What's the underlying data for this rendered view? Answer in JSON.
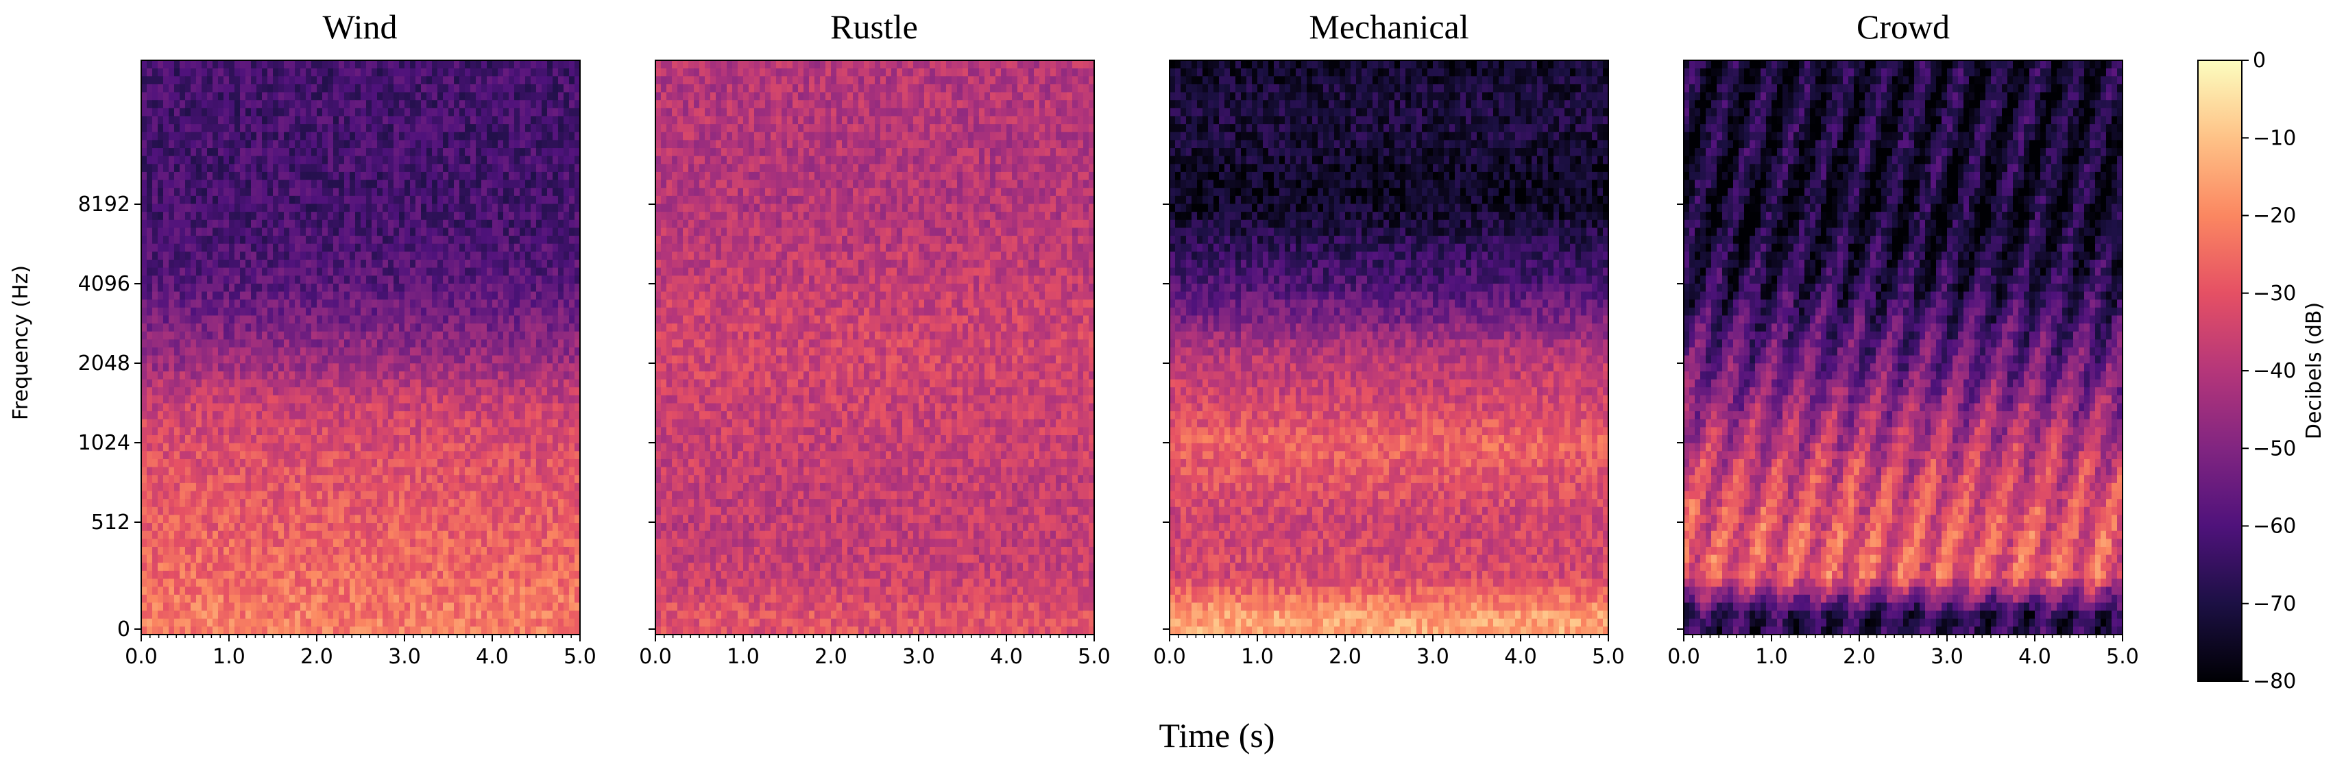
{
  "figure": {
    "shared_xlabel": "Time (s)",
    "shared_ylabel": "Frequency (Hz)"
  },
  "colorbar": {
    "label": "Decibels (dB)",
    "range": [
      -80,
      0
    ],
    "ticks": [
      0,
      -10,
      -20,
      -30,
      -40,
      -50,
      -60,
      -70,
      -80
    ],
    "tick_labels": [
      "0",
      "−10",
      "−20",
      "−30",
      "−40",
      "−50",
      "−60",
      "−70",
      "−80"
    ],
    "colormap": "magma",
    "colormap_stops": [
      "#000004",
      "#1c1044",
      "#4f127b",
      "#812581",
      "#b5367a",
      "#e55064",
      "#fb8761",
      "#fec287",
      "#fcfdbf"
    ]
  },
  "chart_data": [
    {
      "type": "heatmap",
      "title": "Wind",
      "xlabel": "Time (s)",
      "ylabel": "Frequency (Hz)",
      "xlim": [
        0,
        5
      ],
      "x_ticks": [
        0,
        1,
        2,
        3,
        4,
        5
      ],
      "x_tick_labels": [
        "0.0",
        "1.0",
        "2.0",
        "3.0",
        "4.0",
        "5.0"
      ],
      "y_scale": "log2",
      "y_ticks": [
        0,
        512,
        1024,
        2048,
        4096,
        8192
      ],
      "y_tick_labels": [
        "0",
        "512",
        "1024",
        "2048",
        "4096",
        "8192"
      ],
      "value_range_db": [
        -80,
        0
      ],
      "freq_profile_hz": [
        64,
        256,
        512,
        1024,
        1536,
        2048,
        3072,
        4096,
        6144,
        8192,
        11025
      ],
      "freq_profile_db": [
        -22,
        -25,
        -28,
        -32,
        -37,
        -45,
        -53,
        -58,
        -61,
        -62,
        -62
      ]
    },
    {
      "type": "heatmap",
      "title": "Rustle",
      "xlabel": "Time (s)",
      "xlim": [
        0,
        5
      ],
      "x_ticks": [
        0,
        1,
        2,
        3,
        4,
        5
      ],
      "x_tick_labels": [
        "0.0",
        "1.0",
        "2.0",
        "3.0",
        "4.0",
        "5.0"
      ],
      "y_scale": "log2",
      "y_ticks": [
        0,
        512,
        1024,
        2048,
        4096,
        8192
      ],
      "value_range_db": [
        -80,
        0
      ],
      "freq_profile_hz": [
        64,
        256,
        512,
        1024,
        1536,
        2048,
        3072,
        4096,
        6144,
        8192,
        11025
      ],
      "freq_profile_db": [
        -30,
        -36,
        -37,
        -36,
        -35,
        -34,
        -35,
        -37,
        -39,
        -40,
        -40
      ]
    },
    {
      "type": "heatmap",
      "title": "Mechanical",
      "xlabel": "Time (s)",
      "xlim": [
        0,
        5
      ],
      "x_ticks": [
        0,
        1,
        2,
        3,
        4,
        5
      ],
      "x_tick_labels": [
        "0.0",
        "1.0",
        "2.0",
        "3.0",
        "4.0",
        "5.0"
      ],
      "y_scale": "log2",
      "y_ticks": [
        0,
        512,
        1024,
        2048,
        4096,
        8192
      ],
      "value_range_db": [
        -80,
        0
      ],
      "freq_profile_hz": [
        64,
        256,
        512,
        1024,
        1536,
        2048,
        3072,
        4096,
        6144,
        8192,
        11025
      ],
      "freq_profile_db": [
        -12,
        -32,
        -38,
        -24,
        -32,
        -38,
        -55,
        -62,
        -66,
        -72,
        -74
      ]
    },
    {
      "type": "heatmap",
      "title": "Crowd",
      "xlabel": "Time (s)",
      "xlim": [
        0,
        5
      ],
      "x_ticks": [
        0,
        1,
        2,
        3,
        4,
        5
      ],
      "x_tick_labels": [
        "0.0",
        "1.0",
        "2.0",
        "3.0",
        "4.0",
        "5.0"
      ],
      "y_scale": "log2",
      "y_ticks": [
        0,
        512,
        1024,
        2048,
        4096,
        8192
      ],
      "value_range_db": [
        -80,
        0
      ],
      "freq_profile_hz": [
        64,
        256,
        512,
        1024,
        1536,
        2048,
        3072,
        4096,
        6144,
        8192,
        11025
      ],
      "freq_profile_db": [
        -68,
        -28,
        -30,
        -40,
        -48,
        -55,
        -62,
        -68,
        -72,
        -74,
        -72
      ]
    }
  ]
}
